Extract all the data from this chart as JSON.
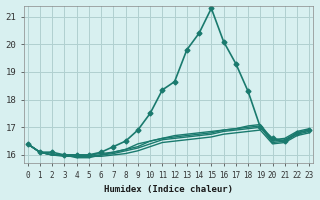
{
  "xlabel": "Humidex (Indice chaleur)",
  "ylabel": "",
  "bg_color": "#d8f0f0",
  "grid_color": "#b0d0d0",
  "line_color": "#1a7a6e",
  "xlim": [
    0,
    23
  ],
  "ylim": [
    15.7,
    21.4
  ],
  "yticks": [
    16,
    17,
    18,
    19,
    20,
    21
  ],
  "xticks": [
    0,
    1,
    2,
    3,
    4,
    5,
    6,
    7,
    8,
    9,
    10,
    11,
    12,
    13,
    14,
    15,
    16,
    17,
    18,
    19,
    20,
    21,
    22,
    23
  ],
  "series": [
    {
      "x": [
        0,
        1,
        2,
        3,
        4,
        5,
        6,
        7,
        8,
        9,
        10,
        11,
        12,
        13,
        14,
        15,
        16,
        17,
        18,
        19,
        20,
        21,
        22,
        23
      ],
      "y": [
        16.4,
        16.1,
        16.1,
        16.0,
        16.0,
        16.0,
        16.1,
        16.3,
        16.5,
        16.9,
        17.5,
        18.35,
        18.65,
        19.8,
        20.4,
        21.3,
        20.1,
        19.3,
        18.3,
        17.0,
        16.6,
        16.5,
        16.8,
        16.9
      ],
      "marker": "D",
      "markersize": 2.5,
      "linewidth": 1.2
    },
    {
      "x": [
        0,
        1,
        2,
        3,
        4,
        5,
        6,
        7,
        8,
        9,
        10,
        11,
        12,
        13,
        14,
        15,
        16,
        17,
        18,
        19,
        20,
        21,
        22,
        23
      ],
      "y": [
        16.4,
        16.1,
        16.0,
        16.0,
        15.9,
        15.9,
        16.0,
        16.1,
        16.2,
        16.3,
        16.5,
        16.6,
        16.7,
        16.75,
        16.8,
        16.85,
        16.9,
        16.95,
        17.0,
        17.05,
        16.5,
        16.55,
        16.8,
        16.9
      ],
      "marker": null,
      "markersize": 0,
      "linewidth": 1.0
    },
    {
      "x": [
        0,
        1,
        2,
        3,
        4,
        5,
        6,
        7,
        8,
        9,
        10,
        11,
        12,
        13,
        14,
        15,
        16,
        17,
        18,
        19,
        20,
        21,
        22,
        23
      ],
      "y": [
        16.4,
        16.1,
        16.0,
        16.0,
        16.0,
        16.0,
        16.05,
        16.1,
        16.2,
        16.4,
        16.5,
        16.6,
        16.65,
        16.7,
        16.75,
        16.8,
        16.9,
        16.95,
        17.05,
        17.1,
        16.55,
        16.6,
        16.85,
        16.95
      ],
      "marker": null,
      "markersize": 0,
      "linewidth": 1.0
    },
    {
      "x": [
        0,
        1,
        2,
        3,
        4,
        5,
        6,
        7,
        8,
        9,
        10,
        11,
        12,
        13,
        14,
        15,
        16,
        17,
        18,
        19,
        20,
        21,
        22,
        23
      ],
      "y": [
        16.4,
        16.1,
        16.0,
        15.95,
        15.95,
        15.95,
        16.0,
        16.05,
        16.15,
        16.25,
        16.4,
        16.55,
        16.6,
        16.65,
        16.7,
        16.75,
        16.85,
        16.9,
        16.95,
        17.0,
        16.45,
        16.5,
        16.75,
        16.85
      ],
      "marker": null,
      "markersize": 0,
      "linewidth": 1.0
    },
    {
      "x": [
        0,
        1,
        2,
        3,
        4,
        5,
        6,
        7,
        8,
        9,
        10,
        11,
        12,
        13,
        14,
        15,
        16,
        17,
        18,
        19,
        20,
        21,
        22,
        23
      ],
      "y": [
        16.4,
        16.1,
        16.0,
        16.0,
        16.0,
        15.95,
        15.95,
        16.0,
        16.05,
        16.15,
        16.3,
        16.45,
        16.5,
        16.55,
        16.6,
        16.65,
        16.75,
        16.8,
        16.85,
        16.9,
        16.4,
        16.45,
        16.7,
        16.8
      ],
      "marker": null,
      "markersize": 0,
      "linewidth": 1.0
    }
  ]
}
